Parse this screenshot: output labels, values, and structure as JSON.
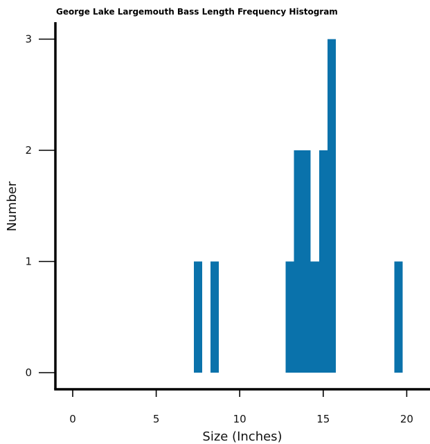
{
  "chart_data": {
    "type": "bar",
    "title": "George Lake Largemouth Bass Length Frequency Histogram",
    "xlabel": "Size (Inches)",
    "ylabel": "Number",
    "xlim": [
      -1,
      21
    ],
    "ylim": [
      -0.1,
      3.2
    ],
    "xticks": [
      0,
      5,
      10,
      15,
      20
    ],
    "yticks": [
      0,
      1,
      2,
      3
    ],
    "bin_width": 0.5,
    "bar_color": "#0a72ab",
    "grid": false,
    "bins": [
      {
        "x": 7.5,
        "value": 1
      },
      {
        "x": 8.5,
        "value": 1
      },
      {
        "x": 13.0,
        "value": 1
      },
      {
        "x": 13.5,
        "value": 2
      },
      {
        "x": 14.0,
        "value": 2
      },
      {
        "x": 14.5,
        "value": 1
      },
      {
        "x": 15.0,
        "value": 2
      },
      {
        "x": 15.5,
        "value": 3
      },
      {
        "x": 19.5,
        "value": 1
      }
    ]
  }
}
